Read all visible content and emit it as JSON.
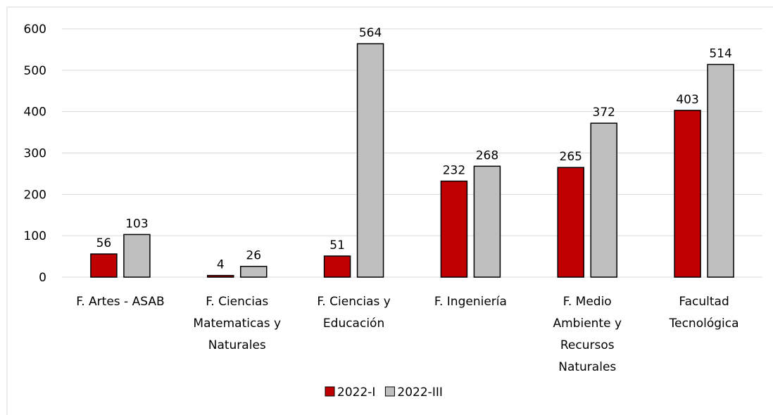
{
  "chart_data": {
    "type": "bar",
    "categories": [
      "F. Artes - ASAB",
      "F. Ciencias Matematicas y Naturales",
      "F. Ciencias y Educación",
      "F. Ingeniería",
      "F. Medio Ambiente y Recursos Naturales",
      "Facultad Tecnológica"
    ],
    "series": [
      {
        "name": "2022-I",
        "color": "#c00000",
        "values": [
          56,
          4,
          51,
          232,
          265,
          403
        ]
      },
      {
        "name": "2022-III",
        "color": "#bfbfbf",
        "values": [
          103,
          26,
          564,
          268,
          372,
          514
        ]
      }
    ],
    "ylim": [
      0,
      600
    ],
    "yticks": [
      0,
      100,
      200,
      300,
      400,
      500,
      600
    ],
    "grid": true,
    "legend": "bottom"
  }
}
